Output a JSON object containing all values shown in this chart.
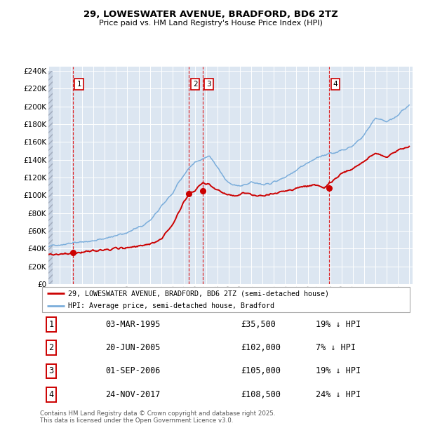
{
  "title_line1": "29, LOWESWATER AVENUE, BRADFORD, BD6 2TZ",
  "title_line2": "Price paid vs. HM Land Registry's House Price Index (HPI)",
  "ylim": [
    0,
    240000
  ],
  "yticks": [
    0,
    20000,
    40000,
    60000,
    80000,
    100000,
    120000,
    140000,
    160000,
    180000,
    200000,
    220000,
    240000
  ],
  "sale_dates_num": [
    1995.17,
    2005.47,
    2006.67,
    2017.9
  ],
  "sale_prices": [
    35500,
    102000,
    105000,
    108500
  ],
  "vline_dates": [
    1995.17,
    2005.47,
    2006.67,
    2017.9
  ],
  "hpi_color": "#7aaddb",
  "price_color": "#cc0000",
  "plot_bg": "#dce6f1",
  "legend_label_price": "29, LOWESWATER AVENUE, BRADFORD, BD6 2TZ (semi-detached house)",
  "legend_label_hpi": "HPI: Average price, semi-detached house, Bradford",
  "table_entries": [
    {
      "num": "1",
      "date": "03-MAR-1995",
      "price": "£35,500",
      "pct": "19% ↓ HPI"
    },
    {
      "num": "2",
      "date": "20-JUN-2005",
      "price": "£102,000",
      "pct": "7% ↓ HPI"
    },
    {
      "num": "3",
      "date": "01-SEP-2006",
      "price": "£105,000",
      "pct": "19% ↓ HPI"
    },
    {
      "num": "4",
      "date": "24-NOV-2017",
      "price": "£108,500",
      "pct": "24% ↓ HPI"
    }
  ],
  "footnote": "Contains HM Land Registry data © Crown copyright and database right 2025.\nThis data is licensed under the Open Government Licence v3.0."
}
